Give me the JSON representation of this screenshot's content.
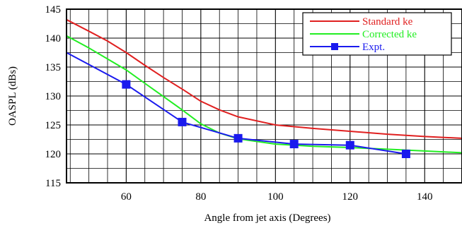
{
  "chart_data": {
    "type": "line",
    "title": "",
    "xlabel": "Angle from jet axis (Degrees)",
    "ylabel": "OASPL (dBs)",
    "xlim": [
      44,
      150
    ],
    "ylim": [
      115,
      145
    ],
    "x_major_ticks": [
      60,
      80,
      100,
      120,
      140
    ],
    "x_minor_step": 5,
    "y_major_ticks": [
      115,
      120,
      125,
      130,
      135,
      140,
      145
    ],
    "y_minor_step": 2.5,
    "grid": true,
    "legend_position": "top-right",
    "series": [
      {
        "name": "Standard ke",
        "color": "#e02020",
        "marker": "none",
        "x": [
          44,
          50,
          55,
          60,
          65,
          70,
          75,
          80,
          85,
          90,
          100,
          110,
          120,
          130,
          140,
          150
        ],
        "y": [
          143.2,
          141.2,
          139.5,
          137.5,
          135.3,
          133.2,
          131.2,
          129.1,
          127.6,
          126.4,
          125.0,
          124.4,
          123.9,
          123.4,
          123.0,
          122.7
        ]
      },
      {
        "name": "Corrected ke",
        "color": "#22ee22",
        "marker": "none",
        "x": [
          44,
          50,
          55,
          60,
          65,
          70,
          75,
          80,
          85,
          90,
          100,
          110,
          120,
          130,
          140,
          150
        ],
        "y": [
          140.4,
          138.3,
          136.4,
          134.5,
          132.2,
          129.9,
          127.6,
          125.2,
          123.6,
          122.6,
          121.7,
          121.3,
          121.1,
          120.8,
          120.5,
          120.2
        ]
      },
      {
        "name": "Expt.",
        "color": "#1a1aee",
        "marker": "square",
        "x": [
          44,
          60,
          75,
          90,
          105,
          120,
          135
        ],
        "y": [
          137.5,
          132.0,
          125.5,
          122.7,
          121.7,
          121.5,
          120.0
        ],
        "marker_x": [
          60,
          75,
          90,
          105,
          120,
          135
        ],
        "marker_y": [
          132.0,
          125.5,
          122.7,
          121.7,
          121.5,
          120.0
        ]
      }
    ]
  }
}
